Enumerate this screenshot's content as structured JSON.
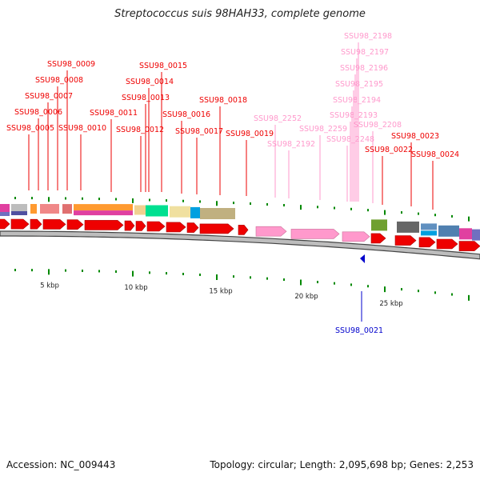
{
  "title": "Streptococcus suis 98HAH33, complete genome",
  "footer": {
    "accession": "Accession: NC_009443",
    "summary": "Topology: circular; Length: 2,095,698 bp; Genes: 2,253"
  },
  "colors": {
    "gene": "#ee0000",
    "rna": "#ff99cc",
    "selected": "#0000cc",
    "backbone": "#999999",
    "tick": "#008800"
  },
  "scale_labels": [
    "5 kbp",
    "10 kbp",
    "15 kbp",
    "20 kbp",
    "25 kbp"
  ],
  "gene_labels": [
    {
      "text": "SSU98_0009",
      "kind": "gene"
    },
    {
      "text": "SSU98_0008",
      "kind": "gene"
    },
    {
      "text": "SSU98_0007",
      "kind": "gene"
    },
    {
      "text": "SSU98_0006",
      "kind": "gene"
    },
    {
      "text": "SSU98_0005",
      "kind": "gene"
    },
    {
      "text": "SSU98_0010",
      "kind": "gene"
    },
    {
      "text": "SSU98_0011",
      "kind": "gene"
    },
    {
      "text": "SSU98_0015",
      "kind": "gene"
    },
    {
      "text": "SSU98_0014",
      "kind": "gene"
    },
    {
      "text": "SSU98_0013",
      "kind": "gene"
    },
    {
      "text": "SSU98_0012",
      "kind": "gene"
    },
    {
      "text": "SSU98_0016",
      "kind": "gene"
    },
    {
      "text": "SSU98_0017",
      "kind": "gene"
    },
    {
      "text": "SSU98_0018",
      "kind": "gene"
    },
    {
      "text": "SSU98_0019",
      "kind": "gene"
    },
    {
      "text": "SSU98_2252",
      "kind": "rna"
    },
    {
      "text": "SSU98_2192",
      "kind": "rna"
    },
    {
      "text": "SSU98_2259",
      "kind": "rna"
    },
    {
      "text": "SSU98_2198",
      "kind": "rna"
    },
    {
      "text": "SSU98_2197",
      "kind": "rna"
    },
    {
      "text": "SSU98_2196",
      "kind": "rna"
    },
    {
      "text": "SSU98_2195",
      "kind": "rna"
    },
    {
      "text": "SSU98_2194",
      "kind": "rna"
    },
    {
      "text": "SSU98_2193",
      "kind": "rna"
    },
    {
      "text": "SSU98_2248",
      "kind": "rna"
    },
    {
      "text": "SSU98_2208",
      "kind": "rna"
    },
    {
      "text": "SSU98_0022",
      "kind": "gene"
    },
    {
      "text": "SSU98_0023",
      "kind": "gene"
    },
    {
      "text": "SSU98_0024",
      "kind": "gene"
    },
    {
      "text": "SSU98_0021",
      "kind": "selected"
    }
  ]
}
